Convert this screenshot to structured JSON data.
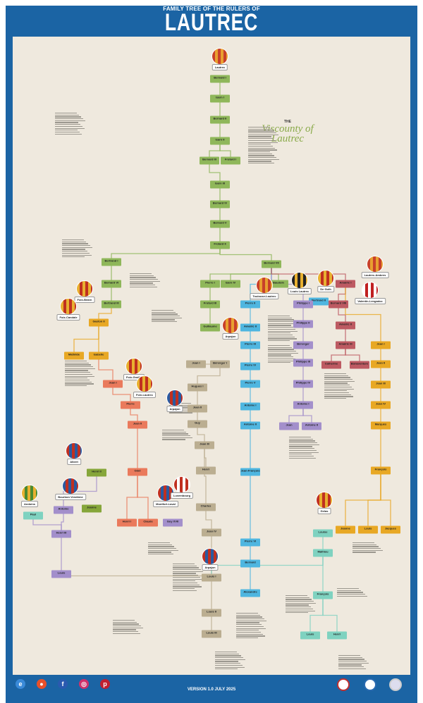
{
  "header": {
    "subtitle": "FAMILY TREE OF THE RULERS OF",
    "title": "LAUTREC"
  },
  "intro": {
    "the": "THE",
    "name": "Viscounty of Lautrec"
  },
  "colors": {
    "frame": "#1b64a4",
    "background": "#efe9de",
    "green": "#8fb75a",
    "blue": "#4fb6e0",
    "purple": "#a38fcb",
    "red": "#bd5a62",
    "yellow": "#e8a824",
    "salmon": "#ea7a5c",
    "tan": "#bbae91",
    "teal": "#7fd2c0",
    "olive": "#86a63a"
  },
  "nodes": [
    {
      "name": "Bernard I",
      "color": "green"
    },
    {
      "name": "Isarn I",
      "color": "green"
    },
    {
      "name": "Bernard II",
      "color": "green"
    },
    {
      "name": "Isarn II",
      "color": "green"
    },
    {
      "name": "Bernard III",
      "color": "green"
    },
    {
      "name": "Frotard I",
      "color": "green"
    },
    {
      "name": "Isarn III",
      "color": "green"
    },
    {
      "name": "Bernard IV",
      "color": "green"
    },
    {
      "name": "Bernard V",
      "color": "green"
    },
    {
      "name": "Frotard II",
      "color": "green"
    },
    {
      "name": "Bertrand I",
      "color": "green"
    },
    {
      "name": "Bernard VI",
      "color": "green"
    },
    {
      "name": "Bertrand III",
      "color": "green"
    },
    {
      "name": "Bernard VII",
      "color": "green"
    },
    {
      "name": "Pierre I",
      "color": "green"
    },
    {
      "name": "Isarn IV",
      "color": "green"
    },
    {
      "name": "Frotard III",
      "color": "green"
    },
    {
      "name": "Guillaume",
      "color": "green"
    },
    {
      "name": "Baudoin",
      "color": "green"
    },
    {
      "name": "Pierre II",
      "color": "blue"
    },
    {
      "name": "Amalric II",
      "color": "blue"
    },
    {
      "name": "Pierre III",
      "color": "blue"
    },
    {
      "name": "Pierre IV",
      "color": "blue"
    },
    {
      "name": "Pierre V",
      "color": "blue"
    },
    {
      "name": "Antoine I",
      "color": "blue"
    },
    {
      "name": "Antoine II",
      "color": "blue"
    },
    {
      "name": "Jean-François",
      "color": "blue"
    },
    {
      "name": "Pierre VI",
      "color": "blue"
    },
    {
      "name": "Bernard",
      "color": "blue"
    },
    {
      "name": "Alexandre",
      "color": "blue"
    },
    {
      "name": "Bertrand II",
      "color": "blue"
    },
    {
      "name": "Philippe I",
      "color": "purple"
    },
    {
      "name": "Philippe II",
      "color": "purple"
    },
    {
      "name": "Bérenger",
      "color": "purple"
    },
    {
      "name": "Philippe III",
      "color": "purple"
    },
    {
      "name": "Philippe IV",
      "color": "purple"
    },
    {
      "name": "Antoine I",
      "color": "purple"
    },
    {
      "name": "Jean",
      "color": "purple"
    },
    {
      "name": "Antoine II",
      "color": "purple"
    },
    {
      "name": "Amalric I",
      "color": "red"
    },
    {
      "name": "Bernard VIII",
      "color": "red"
    },
    {
      "name": "Amalric II",
      "color": "red"
    },
    {
      "name": "Amalric III",
      "color": "red"
    },
    {
      "name": "Catherine",
      "color": "red"
    },
    {
      "name": "Bonaventure",
      "color": "red"
    },
    {
      "name": "Jean I",
      "color": "yellow"
    },
    {
      "name": "Jean II",
      "color": "yellow"
    },
    {
      "name": "Jean III",
      "color": "yellow"
    },
    {
      "name": "Jean IV",
      "color": "yellow"
    },
    {
      "name": "Marquès",
      "color": "yellow"
    },
    {
      "name": "François",
      "color": "yellow"
    },
    {
      "name": "Jeanne",
      "color": "yellow"
    },
    {
      "name": "Louis",
      "color": "yellow"
    },
    {
      "name": "Jacques",
      "color": "yellow"
    },
    {
      "name": "Louise",
      "color": "teal"
    },
    {
      "name": "Mathieu",
      "color": "teal"
    },
    {
      "name": "François",
      "color": "teal"
    },
    {
      "name": "Louis",
      "color": "teal"
    },
    {
      "name": "Henri",
      "color": "teal"
    },
    {
      "name": "Paul",
      "color": "teal"
    },
    {
      "name": "Mathilde",
      "color": "yellow"
    },
    {
      "name": "Isabelle",
      "color": "yellow"
    },
    {
      "name": "Gaston II",
      "color": "yellow"
    },
    {
      "name": "Jean I",
      "color": "salmon"
    },
    {
      "name": "Pierre",
      "color": "salmon"
    },
    {
      "name": "Jean II",
      "color": "salmon"
    },
    {
      "name": "Odet",
      "color": "salmon"
    },
    {
      "name": "Henri I",
      "color": "salmon"
    },
    {
      "name": "Claude",
      "color": "salmon"
    },
    {
      "name": "Henri II",
      "color": "olive"
    },
    {
      "name": "Antoine",
      "color": "purple"
    },
    {
      "name": "Jeanne",
      "color": "olive"
    },
    {
      "name": "Henri III",
      "color": "purple"
    },
    {
      "name": "Louis",
      "color": "purple"
    },
    {
      "name": "Guy XVII",
      "color": "purple"
    },
    {
      "name": "Jean I",
      "color": "tan"
    },
    {
      "name": "Bérenger I",
      "color": "tan"
    },
    {
      "name": "Hugues I",
      "color": "tan"
    },
    {
      "name": "Jean II",
      "color": "tan"
    },
    {
      "name": "Guy",
      "color": "tan"
    },
    {
      "name": "Jean III",
      "color": "tan"
    },
    {
      "name": "Henri",
      "color": "tan"
    },
    {
      "name": "Charles",
      "color": "tan"
    },
    {
      "name": "Jean IV",
      "color": "tan"
    },
    {
      "name": "Louis I",
      "color": "tan"
    },
    {
      "name": "Louis II",
      "color": "tan"
    },
    {
      "name": "Louis III",
      "color": "tan"
    }
  ],
  "arms": [
    {
      "label": "Lautrec",
      "colors": [
        "#c8402a",
        "#e8a030"
      ]
    },
    {
      "label": "Foix-Béarn",
      "colors": [
        "#e8b030",
        "#c03020"
      ]
    },
    {
      "label": "Foix-Candale",
      "colors": [
        "#e8b030",
        "#c03020"
      ]
    },
    {
      "label": "Toulouse-Lautrec",
      "colors": [
        "#c8402a",
        "#e8a030"
      ]
    },
    {
      "label": "Louis Lautrec",
      "colors": [
        "#222222",
        "#e8b030"
      ]
    },
    {
      "label": "De Goth",
      "colors": [
        "#e8b030",
        "#c03020"
      ]
    },
    {
      "label": "Lautrec-Ambres",
      "colors": [
        "#c8402a",
        "#e8a030"
      ]
    },
    {
      "label": "Valentin-Lengadoc",
      "colors": [
        "#ffffff",
        "#c02020"
      ]
    },
    {
      "label": "Arpajon",
      "colors": [
        "#c8402a",
        "#e8a030"
      ]
    },
    {
      "label": "Foix-Grailly",
      "colors": [
        "#e8b030",
        "#c03020"
      ]
    },
    {
      "label": "Foix-Lautrec",
      "colors": [
        "#e8b030",
        "#c03020"
      ]
    },
    {
      "label": "Arpajon",
      "colors": [
        "#2a5aa0",
        "#c03020"
      ]
    },
    {
      "label": "Albret",
      "colors": [
        "#c03020",
        "#2a5aa0"
      ]
    },
    {
      "label": "Andoins",
      "colors": [
        "#e8b030",
        "#4a8a30"
      ]
    },
    {
      "label": "Bourbon Vendôme",
      "colors": [
        "#2a5aa0",
        "#c03020"
      ]
    },
    {
      "label": "Montfort-Laval",
      "colors": [
        "#c03020",
        "#2a5aa0"
      ]
    },
    {
      "label": "Luxembourg",
      "colors": [
        "#c03020",
        "#ffffff"
      ]
    },
    {
      "label": "Arpajon",
      "colors": [
        "#c03020",
        "#2a5aa0"
      ]
    },
    {
      "label": "Gelas",
      "colors": [
        "#c03020",
        "#e8b030"
      ]
    }
  ],
  "footer": {
    "version": "VERSION 1.0 JULY 2025",
    "social": [
      {
        "icon": "website-icon",
        "color": "#3a8ad8"
      },
      {
        "icon": "reddit-icon",
        "color": "#e8502a"
      },
      {
        "icon": "facebook-icon",
        "color": "#2a5ab0"
      },
      {
        "icon": "instagram-icon",
        "color": "#d0306a"
      },
      {
        "icon": "pinterest-icon",
        "color": "#c02030"
      }
    ]
  }
}
